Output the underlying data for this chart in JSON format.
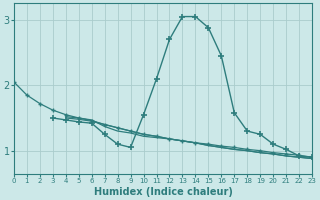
{
  "xlabel": "Humidex (Indice chaleur)",
  "x": [
    0,
    1,
    2,
    3,
    4,
    5,
    6,
    7,
    8,
    9,
    10,
    11,
    12,
    13,
    14,
    15,
    16,
    17,
    18,
    19,
    20,
    21,
    22,
    23
  ],
  "line1_x": [
    0,
    1,
    2,
    3,
    4,
    5,
    6,
    7,
    8,
    9,
    10,
    11,
    12,
    13,
    14,
    15,
    16,
    17,
    18,
    19,
    20,
    21,
    22,
    23
  ],
  "line1_y": [
    2.05,
    1.85,
    1.72,
    1.62,
    1.55,
    1.5,
    1.46,
    1.4,
    1.35,
    1.3,
    1.25,
    1.22,
    1.18,
    1.15,
    1.12,
    1.1,
    1.07,
    1.05,
    1.02,
    1.0,
    0.97,
    0.95,
    0.93,
    0.9
  ],
  "line2_x": [
    3,
    4,
    5,
    6,
    7,
    8,
    9,
    10,
    11,
    12,
    13,
    14,
    15,
    16,
    17,
    18,
    19,
    20,
    21,
    22,
    23
  ],
  "line2_y": [
    1.5,
    1.47,
    1.44,
    1.42,
    1.25,
    1.1,
    1.05,
    1.55,
    2.1,
    2.7,
    3.05,
    3.05,
    2.88,
    2.45,
    1.58,
    1.3,
    1.25,
    1.1,
    1.02,
    0.92,
    0.9
  ],
  "line3_x": [
    4,
    5,
    6,
    7,
    8,
    9,
    10,
    11,
    12,
    13,
    14,
    15,
    16,
    17,
    18,
    19,
    20,
    21,
    22,
    23
  ],
  "line3_y": [
    1.52,
    1.5,
    1.47,
    1.37,
    1.3,
    1.27,
    1.22,
    1.2,
    1.18,
    1.15,
    1.12,
    1.08,
    1.05,
    1.02,
    1.0,
    0.97,
    0.95,
    0.92,
    0.9,
    0.88
  ],
  "line4_x": [
    4,
    5,
    6,
    7,
    8,
    9,
    10,
    11,
    12,
    13,
    14,
    15,
    16,
    17,
    18,
    19,
    20,
    21,
    22,
    23
  ],
  "line4_y": [
    1.5,
    1.48,
    1.45,
    1.4,
    1.35,
    1.3,
    1.25,
    1.22,
    1.18,
    1.15,
    1.12,
    1.08,
    1.05,
    1.02,
    1.0,
    0.97,
    0.95,
    0.92,
    0.9,
    0.88
  ],
  "bg_color": "#cce8e8",
  "line_color": "#2e7d7d",
  "grid_color": "#b8d8d8",
  "ylim": [
    0.65,
    3.25
  ],
  "yticks": [
    1,
    2,
    3
  ],
  "xlim": [
    0,
    23
  ]
}
